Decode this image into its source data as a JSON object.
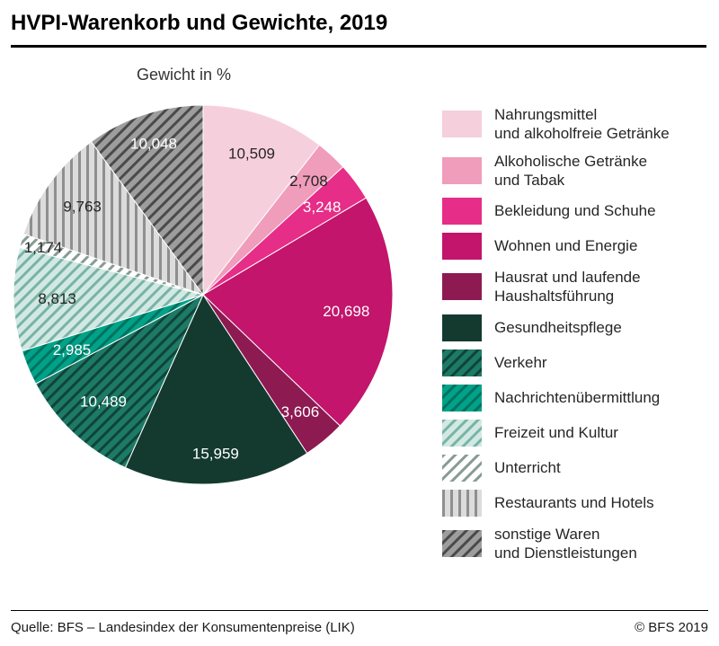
{
  "header": {
    "title": "HVPI-Warenkorb und Gewichte, 2019"
  },
  "chart_data": {
    "type": "pie",
    "title": "Gewicht in %",
    "unit": "%",
    "total": 100.0,
    "start_angle_deg": 0,
    "direction": "clockwise",
    "slices": [
      {
        "label": "Nahrungsmittel und alkoholfreie Getränke",
        "legend_lines": [
          "Nahrungsmittel",
          "und alkoholfreie Getränke"
        ],
        "value": 10.509,
        "display": "10,509",
        "color": "#f6cfdd",
        "pattern": "none",
        "pattern_color": "",
        "label_color": "#262626"
      },
      {
        "label": "Alkoholische Getränke und Tabak",
        "legend_lines": [
          "Alkoholische Getränke",
          "und Tabak"
        ],
        "value": 2.708,
        "display": "2,708",
        "color": "#f09cbb",
        "pattern": "none",
        "pattern_color": "",
        "label_color": "#262626"
      },
      {
        "label": "Bekleidung und Schuhe",
        "legend_lines": [
          "Bekleidung und Schuhe"
        ],
        "value": 3.248,
        "display": "3,248",
        "color": "#e62d87",
        "pattern": "none",
        "pattern_color": "",
        "label_color": "#ffffff"
      },
      {
        "label": "Wohnen und Energie",
        "legend_lines": [
          "Wohnen und Energie"
        ],
        "value": 20.698,
        "display": "20,698",
        "color": "#c2156b",
        "pattern": "none",
        "pattern_color": "",
        "label_color": "#ffffff"
      },
      {
        "label": "Hausrat und laufende Haushaltsführung",
        "legend_lines": [
          "Hausrat und laufende",
          "Haushaltsführung"
        ],
        "value": 3.606,
        "display": "3,606",
        "color": "#8e1a52",
        "pattern": "none",
        "pattern_color": "",
        "label_color": "#ffffff"
      },
      {
        "label": "Gesundheitspflege",
        "legend_lines": [
          "Gesundheitspflege"
        ],
        "value": 15.959,
        "display": "15,959",
        "color": "#143a30",
        "pattern": "none",
        "pattern_color": "",
        "label_color": "#ffffff"
      },
      {
        "label": "Verkehr",
        "legend_lines": [
          "Verkehr"
        ],
        "value": 10.489,
        "display": "10,489",
        "color": "#1c7a67",
        "pattern": "diagonal",
        "pattern_color": "#0f4437",
        "label_color": "#ffffff"
      },
      {
        "label": "Nachrichtenübermittlung",
        "legend_lines": [
          "Nachrichtenübermittlung"
        ],
        "value": 2.985,
        "display": "2,985",
        "color": "#00a289",
        "pattern": "diagonal",
        "pattern_color": "#00725e",
        "label_color": "#ffffff"
      },
      {
        "label": "Freizeit und Kultur",
        "legend_lines": [
          "Freizeit und Kultur"
        ],
        "value": 8.813,
        "display": "8,813",
        "color": "#d2e9e3",
        "pattern": "diagonal",
        "pattern_color": "#79b3a6",
        "label_color": "#262626"
      },
      {
        "label": "Unterricht",
        "legend_lines": [
          "Unterricht"
        ],
        "value": 1.174,
        "display": "1,174",
        "color": "#ffffff",
        "pattern": "diagonal",
        "pattern_color": "#879b94",
        "label_color": "#262626"
      },
      {
        "label": "Restaurants und Hotels",
        "legend_lines": [
          "Restaurants und Hotels"
        ],
        "value": 9.763,
        "display": "9,763",
        "color": "#dcdcdc",
        "pattern": "vertical",
        "pattern_color": "#8f8f8f",
        "label_color": "#262626"
      },
      {
        "label": "sonstige Waren und Dienstleistungen",
        "legend_lines": [
          "sonstige Waren",
          "und Dienstleistungen"
        ],
        "value": 10.048,
        "display": "10,048",
        "color": "#9d9d9d",
        "pattern": "diagonal",
        "pattern_color": "#4a4a4a",
        "label_color": "#ffffff"
      }
    ]
  },
  "footer": {
    "source": "Quelle: BFS – Landesindex der Konsumentenpreise (LIK)",
    "copyright": "© BFS 2019"
  }
}
